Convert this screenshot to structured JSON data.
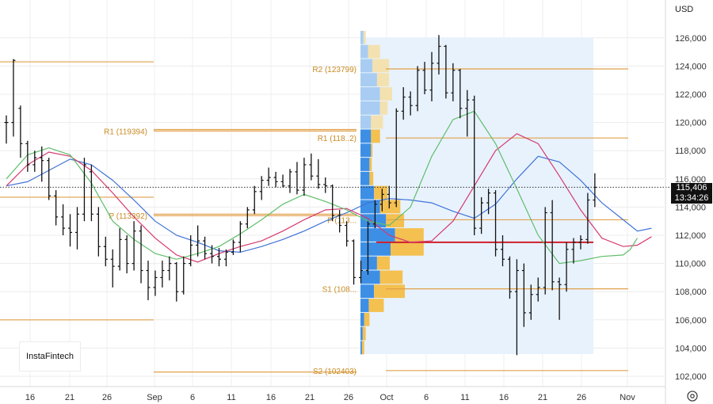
{
  "currency": "USD",
  "logo_text": "InstaFintech",
  "price_box": {
    "price": "115,406",
    "countdown": "13:34:26"
  },
  "settings_icon": "gear-icon",
  "colors": {
    "levels": "#e1a14b",
    "candles": "#111111",
    "ma_blue": "#3f73d6",
    "ma_red": "#d43a6e",
    "ma_green": "#5fbe6a",
    "poc": "#cf1f2a",
    "vp_blue": "#3d8fe6",
    "vp_yellow": "#f4c04f",
    "vp_light_blue": "#a9cdf2",
    "vp_light_yellow": "#f3e1b0",
    "region": "#e8f2fd"
  },
  "chart_data": {
    "type": "candlestick",
    "ylim": [
      101000,
      127500
    ],
    "y_ticks": [
      "102,000",
      "104,000",
      "106,000",
      "108,000",
      "110,000",
      "112,000",
      "114,000",
      "116,000",
      "118,000",
      "120,000",
      "122,000",
      "124,000",
      "126,000"
    ],
    "x_ticks": [
      "16",
      "21",
      "26",
      "Sep",
      "6",
      "11",
      "16",
      "21",
      "26",
      "Oct",
      "6",
      "11",
      "16",
      "21",
      "26",
      "Nov"
    ],
    "current_price": 115406,
    "levels": [
      {
        "name": "",
        "value": 124300,
        "label": ""
      },
      {
        "name": "",
        "value": 119500,
        "label": ""
      },
      {
        "name": "",
        "value": 114700,
        "label": ""
      },
      {
        "name": "",
        "value": 113500,
        "label": ""
      },
      {
        "name": "",
        "value": 106000,
        "label": ""
      },
      {
        "name": "",
        "value": 102300,
        "label": ""
      },
      {
        "name": "R2",
        "value": 123799,
        "label": "R2 (123799)"
      },
      {
        "name": "R1",
        "value": 118900,
        "label": "R1 (118..2)"
      },
      {
        "name": "P",
        "value": 113100,
        "label": "P (113..."
      },
      {
        "name": "S1",
        "value": 108200,
        "label": "S1 (108..."
      },
      {
        "name": "S2",
        "value": 102403,
        "label": "S2 (102403)"
      },
      {
        "name": "R1",
        "value": 119394,
        "label": "R1 (119394)"
      },
      {
        "name": "P",
        "value": 113392,
        "label": "P (113392)"
      }
    ],
    "poc": {
      "value": 111500
    },
    "candles": [
      [
        120000,
        120500,
        118500,
        120000
      ],
      [
        120000,
        124500,
        119000,
        124400
      ],
      [
        121000,
        121200,
        117500,
        118500
      ],
      [
        118500,
        118700,
        116500,
        117000
      ],
      [
        117000,
        118000,
        116500,
        117500
      ],
      [
        117500,
        118300,
        115800,
        117300
      ],
      [
        117300,
        117500,
        114500,
        114800
      ],
      [
        114800,
        115200,
        112700,
        113300
      ],
      [
        113300,
        114200,
        112000,
        112500
      ],
      [
        112500,
        113500,
        111200,
        112200
      ],
      [
        112200,
        114000,
        111000,
        113500
      ],
      [
        113500,
        117500,
        113000,
        117000
      ],
      [
        116500,
        117000,
        113000,
        113500
      ],
      [
        113500,
        114000,
        110500,
        111200
      ],
      [
        111200,
        111900,
        109800,
        110300
      ],
      [
        110300,
        111000,
        108300,
        109800
      ],
      [
        109800,
        112500,
        109500,
        111700
      ],
      [
        111700,
        112000,
        109300,
        110000
      ],
      [
        110000,
        113000,
        109500,
        112300
      ],
      [
        112300,
        112700,
        108600,
        109500
      ],
      [
        109500,
        110200,
        107400,
        108300
      ],
      [
        108300,
        109500,
        107700,
        109000
      ],
      [
        109000,
        110200,
        108300,
        109500
      ],
      [
        109500,
        110500,
        108800,
        110000
      ],
      [
        110000,
        110100,
        107300,
        108000
      ],
      [
        108000,
        110500,
        107800,
        110000
      ],
      [
        110000,
        112000,
        109800,
        111300
      ],
      [
        111300,
        112700,
        110500,
        111600
      ],
      [
        111600,
        111900,
        110300,
        110700
      ],
      [
        110700,
        111300,
        110000,
        110500
      ],
      [
        110500,
        111100,
        109800,
        110300
      ],
      [
        110300,
        111000,
        109800,
        110800
      ],
      [
        110800,
        111700,
        110600,
        111500
      ],
      [
        111500,
        113000,
        110800,
        112800
      ],
      [
        112800,
        114000,
        112500,
        113800
      ],
      [
        113800,
        115500,
        113500,
        115100
      ],
      [
        115100,
        116200,
        114500,
        115900
      ],
      [
        115900,
        116800,
        115500,
        116100
      ],
      [
        116100,
        116500,
        115400,
        115800
      ],
      [
        115800,
        116300,
        115400,
        115500
      ],
      [
        115500,
        116700,
        115000,
        116500
      ],
      [
        116500,
        117200,
        114900,
        115200
      ],
      [
        115200,
        117500,
        114800,
        117000
      ],
      [
        117000,
        117800,
        115900,
        116200
      ],
      [
        116200,
        117400,
        115300,
        115600
      ],
      [
        115600,
        116100,
        115000,
        115500
      ],
      [
        115500,
        115600,
        113000,
        113400
      ],
      [
        113400,
        113800,
        112200,
        112700
      ],
      [
        112700,
        113000,
        111200,
        111600
      ],
      [
        111600,
        111700,
        108500,
        109000
      ],
      [
        109000,
        110200,
        108600,
        109500
      ],
      [
        109500,
        113000,
        109200,
        112800
      ],
      [
        112800,
        114500,
        112500,
        114200
      ],
      [
        114200,
        115300,
        113700,
        114900
      ],
      [
        114900,
        115500,
        113900,
        114300
      ],
      [
        114300,
        121000,
        114000,
        120800
      ],
      [
        120800,
        122500,
        120200,
        121800
      ],
      [
        121800,
        122200,
        120500,
        121200
      ],
      [
        121200,
        124000,
        120800,
        123700
      ],
      [
        123700,
        124300,
        122000,
        122300
      ],
      [
        122300,
        125000,
        121500,
        124200
      ],
      [
        124200,
        126200,
        123400,
        125400
      ],
      [
        125400,
        125500,
        121700,
        122100
      ],
      [
        122100,
        124200,
        121500,
        123700
      ],
      [
        123700,
        123800,
        120300,
        121000
      ],
      [
        121000,
        122300,
        119000,
        121600
      ],
      [
        121600,
        121900,
        112000,
        112500
      ],
      [
        112500,
        114700,
        112100,
        114300
      ],
      [
        114300,
        115300,
        113500,
        115000
      ],
      [
        115000,
        115200,
        110500,
        111000
      ],
      [
        111000,
        112000,
        109800,
        110300
      ],
      [
        110300,
        110500,
        107500,
        108000
      ],
      [
        108000,
        110300,
        103500,
        109500
      ],
      [
        109500,
        110000,
        105500,
        106500
      ],
      [
        106500,
        108500,
        106000,
        107800
      ],
      [
        107800,
        109000,
        107300,
        108300
      ],
      [
        108300,
        114000,
        107800,
        113600
      ],
      [
        113600,
        114500,
        108100,
        108700
      ],
      [
        108700,
        109000,
        106000,
        108500
      ],
      [
        108500,
        111500,
        108000,
        111000
      ],
      [
        111000,
        111800,
        110000,
        111500
      ],
      [
        111500,
        112000,
        111000,
        111700
      ],
      [
        111700,
        115000,
        111400,
        114500
      ],
      [
        114500,
        116400,
        114000,
        115400
      ]
    ],
    "ma_blue": [
      [
        0,
        115500
      ],
      [
        3,
        115800
      ],
      [
        6,
        116600
      ],
      [
        9,
        117400
      ],
      [
        12,
        117000
      ],
      [
        15,
        115900
      ],
      [
        18,
        114500
      ],
      [
        21,
        113000
      ],
      [
        24,
        112000
      ],
      [
        27,
        111500
      ],
      [
        30,
        110900
      ],
      [
        33,
        110800
      ],
      [
        36,
        111200
      ],
      [
        39,
        111700
      ],
      [
        42,
        112300
      ],
      [
        45,
        113000
      ],
      [
        48,
        113600
      ],
      [
        51,
        114300
      ],
      [
        54,
        114600
      ],
      [
        57,
        114500
      ],
      [
        60,
        114300
      ],
      [
        63,
        113700
      ],
      [
        66,
        113200
      ],
      [
        69,
        114200
      ],
      [
        72,
        116000
      ],
      [
        75,
        117600
      ],
      [
        78,
        117200
      ],
      [
        81,
        115900
      ],
      [
        84,
        114300
      ],
      [
        87,
        113100
      ],
      [
        89,
        112300
      ],
      [
        91,
        112500
      ]
    ],
    "ma_red": [
      [
        0,
        115500
      ],
      [
        3,
        117000
      ],
      [
        6,
        117900
      ],
      [
        9,
        117600
      ],
      [
        12,
        116600
      ],
      [
        15,
        115000
      ],
      [
        18,
        113300
      ],
      [
        21,
        111800
      ],
      [
        24,
        110600
      ],
      [
        27,
        110100
      ],
      [
        30,
        110700
      ],
      [
        33,
        111200
      ],
      [
        36,
        111600
      ],
      [
        39,
        112300
      ],
      [
        42,
        113100
      ],
      [
        45,
        113800
      ],
      [
        48,
        113900
      ],
      [
        51,
        113200
      ],
      [
        54,
        112000
      ],
      [
        57,
        111500
      ],
      [
        60,
        111600
      ],
      [
        63,
        113000
      ],
      [
        66,
        115500
      ],
      [
        69,
        118000
      ],
      [
        72,
        119200
      ],
      [
        75,
        118500
      ],
      [
        78,
        116200
      ],
      [
        81,
        113800
      ],
      [
        84,
        111800
      ],
      [
        87,
        111200
      ],
      [
        89,
        111300
      ],
      [
        91,
        111900
      ]
    ],
    "ma_green": [
      [
        0,
        116000
      ],
      [
        3,
        117700
      ],
      [
        6,
        118200
      ],
      [
        9,
        117700
      ],
      [
        12,
        115700
      ],
      [
        15,
        113000
      ],
      [
        18,
        111700
      ],
      [
        21,
        110700
      ],
      [
        24,
        110300
      ],
      [
        27,
        110700
      ],
      [
        30,
        111200
      ],
      [
        33,
        112100
      ],
      [
        36,
        113100
      ],
      [
        39,
        114200
      ],
      [
        42,
        114900
      ],
      [
        45,
        114400
      ],
      [
        48,
        113800
      ],
      [
        51,
        113000
      ],
      [
        54,
        112700
      ],
      [
        57,
        114000
      ],
      [
        60,
        117600
      ],
      [
        63,
        120200
      ],
      [
        66,
        120800
      ],
      [
        69,
        118500
      ],
      [
        72,
        115300
      ],
      [
        75,
        112000
      ],
      [
        78,
        110000
      ],
      [
        81,
        110200
      ],
      [
        84,
        110500
      ],
      [
        87,
        110600
      ],
      [
        88,
        111000
      ],
      [
        89,
        111800
      ]
    ],
    "volume_profile": [
      {
        "low": 103500,
        "high": 104500,
        "blue": 2,
        "yellow": 3
      },
      {
        "low": 104500,
        "high": 105500,
        "blue": 3,
        "yellow": 4
      },
      {
        "low": 105500,
        "high": 106500,
        "blue": 5,
        "yellow": 7
      },
      {
        "low": 106500,
        "high": 107500,
        "blue": 11,
        "yellow": 20
      },
      {
        "low": 107500,
        "high": 108500,
        "blue": 18,
        "yellow": 41
      },
      {
        "low": 108500,
        "high": 109500,
        "blue": 26,
        "yellow": 30
      },
      {
        "low": 109500,
        "high": 110500,
        "blue": 22,
        "yellow": 17
      },
      {
        "low": 110500,
        "high": 111500,
        "blue": 40,
        "yellow": 44
      },
      {
        "low": 111500,
        "high": 112500,
        "blue": 46,
        "yellow": 38
      },
      {
        "low": 112500,
        "high": 113500,
        "blue": 34,
        "yellow": 24
      },
      {
        "low": 113500,
        "high": 114500,
        "blue": 26,
        "yellow": 27
      },
      {
        "low": 114500,
        "high": 115500,
        "blue": 18,
        "yellow": 18
      },
      {
        "low": 115500,
        "high": 116500,
        "blue": 12,
        "yellow": 5
      },
      {
        "low": 116500,
        "high": 117500,
        "blue": 12,
        "yellow": 3
      },
      {
        "low": 117500,
        "high": 118500,
        "blue": 14,
        "yellow": 2
      },
      {
        "low": 118500,
        "high": 119500,
        "blue": 14,
        "yellow": 12
      },
      {
        "low": 119500,
        "high": 120500,
        "blue": 14,
        "yellow": 16
      },
      {
        "low": 120500,
        "high": 121500,
        "blue": 26,
        "yellow": 10
      },
      {
        "low": 121500,
        "high": 122500,
        "blue": 26,
        "yellow": 16
      },
      {
        "low": 122500,
        "high": 123500,
        "blue": 22,
        "yellow": 16
      },
      {
        "low": 123500,
        "high": 124500,
        "blue": 16,
        "yellow": 22
      },
      {
        "low": 124500,
        "high": 125500,
        "blue": 10,
        "yellow": 16
      },
      {
        "low": 125500,
        "high": 126500,
        "blue": 4,
        "yellow": 3
      }
    ]
  }
}
